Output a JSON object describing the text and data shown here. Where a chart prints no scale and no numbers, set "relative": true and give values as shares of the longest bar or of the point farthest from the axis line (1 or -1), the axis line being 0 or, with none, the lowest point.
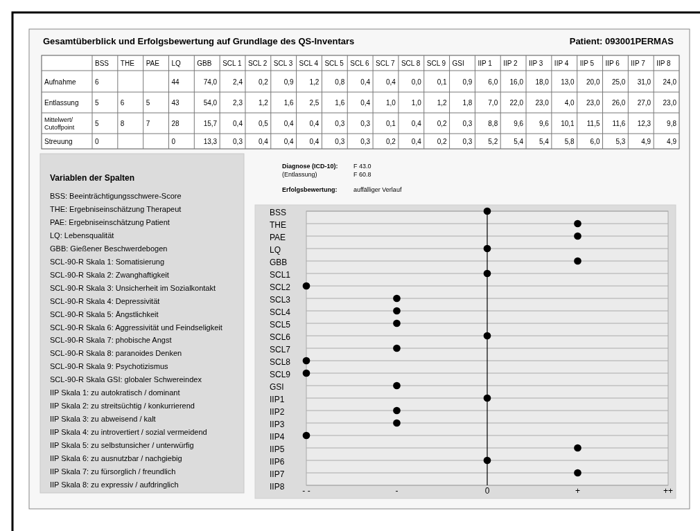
{
  "chart_data": [
    {
      "type": "other",
      "title": "Gesamtüberblick und Erfolgsbewertung auf Grundlage des QS-Inventars",
      "subtitle": "Patient: 093001PERMAS",
      "categories": [
        "BSS",
        "THE",
        "PAE",
        "LQ",
        "GBB",
        "SCL 1",
        "SCL 2",
        "SCL 3",
        "SCL 4",
        "SCL 5",
        "SCL 6",
        "SCL 7",
        "SCL 8",
        "SCL 9",
        "GSI",
        "IIP 1",
        "IIP 2",
        "IIP 3",
        "IIP 4",
        "IIP 5",
        "IIP 6",
        "IIP 7",
        "IIP 8"
      ],
      "y_categories": [
        "Aufnahme",
        "Entlassung",
        "Mittelwert/ Cutoffpoint",
        "Streuung"
      ],
      "cell_labels": [
        [
          "6",
          null,
          null,
          "44",
          "74,0",
          "2,4",
          "0,2",
          "0,9",
          "1,2",
          "0,8",
          "0,4",
          "0,4",
          "0,0",
          "0,1",
          "0,9",
          "6,0",
          "16,0",
          "18,0",
          "13,0",
          "20,0",
          "25,0",
          "31,0",
          "24,0"
        ],
        [
          "5",
          "6",
          "5",
          "43",
          "54,0",
          "2,3",
          "1,2",
          "1,6",
          "2,5",
          "1,6",
          "0,4",
          "1,0",
          "1,0",
          "1,2",
          "1,8",
          "7,0",
          "22,0",
          "23,0",
          "4,0",
          "23,0",
          "26,0",
          "27,0",
          "23,0"
        ],
        [
          "5",
          "8",
          "7",
          "28",
          "15,7",
          "0,4",
          "0,5",
          "0,4",
          "0,4",
          "0,3",
          "0,3",
          "0,1",
          "0,4",
          "0,2",
          "0,3",
          "8,8",
          "9,6",
          "9,6",
          "10,1",
          "11,5",
          "11,6",
          "12,3",
          "9,8"
        ],
        [
          "0",
          null,
          null,
          "0",
          "13,3",
          "0,3",
          "0,4",
          "0,4",
          "0,4",
          "0,3",
          "0,3",
          "0,2",
          "0,4",
          "0,2",
          "0,3",
          "5,2",
          "5,4",
          "5,4",
          "5,8",
          "6,0",
          "5,3",
          "4,9",
          "4,9"
        ]
      ]
    },
    {
      "type": "other",
      "title": "Variablen der Spalten",
      "annotations": [
        "BSS: Beeinträchtigungsschwere-Score",
        "THE: Ergebniseinschätzung Therapeut",
        "PAE: Ergebniseinschätzung Patient",
        "LQ: Lebensqualität",
        "GBB: Gießener Beschwerdebogen",
        "SCL-90-R Skala 1: Somatisierung",
        "SCL-90-R Skala 2: Zwanghaftigkeit",
        "SCL-90-R Skala 3: Unsicherheit im Sozialkontakt",
        "SCL-90-R Skala 4: Depressivität",
        "SCL-90-R Skala 5: Ängstlichkeit",
        "SCL-90-R Skala 6: Aggressivität und Feindseligkeit",
        "SCL-90-R Skala 7: phobische Angst",
        "SCL-90-R Skala 8: paranoides Denken",
        "SCL-90-R Skala 9: Psychotizismus",
        "SCL-90-R Skala GSI: globaler Schwereindex",
        "IIP Skala 1: zu autokratisch / dominant",
        "IIP Skala 2: zu streitsüchtig / konkurrierend",
        "IIP Skala 3: zu abweisend / kalt",
        "IIP Skala 4: zu introvertiert / sozial vermeidend",
        "IIP Skala 5: zu selbstunsicher / unterwürfig",
        "IIP Skala 6: zu ausnutzbar / nachgiebig",
        "IIP Skala 7: zu fürsorglich / freundlich",
        "IIP Skala 8: zu expressiv / aufdringlich"
      ]
    },
    {
      "type": "scatter",
      "orientation": "horizontal",
      "annotations": [
        "Diagnose (ICD-10): F 43.0",
        "(Entlassung) F 60.8",
        "Erfolgsbewertung: auffälliger Verlauf",
        "- -",
        "-",
        "0",
        "+",
        "++"
      ],
      "categories": [
        "BSS",
        "THE",
        "PAE",
        "LQ",
        "GBB",
        "SCL1",
        "SCL2",
        "SCL3",
        "SCL4",
        "SCL5",
        "SCL6",
        "SCL7",
        "SCL8",
        "SCL9",
        "GSI",
        "IIP1",
        "IIP2",
        "IIP3",
        "IIP4",
        "IIP5",
        "IIP6",
        "IIP7",
        "IIP8"
      ],
      "values": [
        0,
        0.5,
        0.5,
        0,
        0.5,
        0,
        -1,
        -0.5,
        -0.5,
        -0.5,
        0,
        -0.5,
        -1,
        -1,
        -0.5,
        0,
        -0.5,
        -0.5,
        -1,
        0.5,
        0,
        0.5,
        null
      ],
      "relative": true,
      "color": "#000000",
      "marker": "circle",
      "grid": "y",
      "ref_lines": [
        {
          "axis": "x",
          "value": 0,
          "color": "#000000"
        }
      ]
    }
  ]
}
